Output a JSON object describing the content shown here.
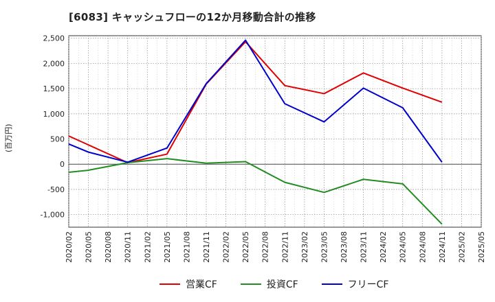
{
  "chart_data": {
    "type": "line",
    "title": "[6083]  キャッシュフローの12か月移動合計の推移",
    "ylabel": "(百万円)",
    "xlabel": "",
    "ylim": [
      -1250,
      2550
    ],
    "yticks": [
      2500,
      2000,
      1500,
      1000,
      500,
      0,
      -500,
      -1000
    ],
    "ytick_labels": [
      "2,500",
      "2,000",
      "1,500",
      "1,000",
      "500",
      "0",
      "-500",
      "-1,000"
    ],
    "categories": [
      "2020/02",
      "2020/05",
      "2020/08",
      "2020/11",
      "2021/02",
      "2021/05",
      "2021/08",
      "2021/11",
      "2022/02",
      "2022/05",
      "2022/08",
      "2022/11",
      "2023/02",
      "2023/05",
      "2023/08",
      "2023/11",
      "2024/02",
      "2024/05",
      "2024/08",
      "2024/11",
      "2025/02",
      "2025/05"
    ],
    "series": [
      {
        "name": "営業CF",
        "color": "#e00000",
        "values": [
          560,
          null,
          null,
          30,
          null,
          200,
          null,
          1590,
          null,
          2430,
          null,
          1560,
          null,
          1400,
          null,
          1810,
          null,
          1510,
          null,
          1230,
          null,
          null
        ]
      },
      {
        "name": "投資CF",
        "color": "#228b22",
        "values": [
          -160,
          -120,
          null,
          30,
          null,
          110,
          null,
          20,
          null,
          50,
          null,
          -360,
          null,
          -560,
          null,
          -300,
          null,
          -390,
          null,
          -1190,
          null,
          null
        ]
      },
      {
        "name": "フリーCF",
        "color": "#0000cc",
        "values": [
          400,
          240,
          null,
          40,
          null,
          320,
          null,
          1600,
          null,
          2460,
          null,
          1200,
          null,
          840,
          null,
          1510,
          null,
          1120,
          null,
          40,
          null,
          null
        ]
      }
    ],
    "grid": true,
    "legend_position": "bottom"
  }
}
